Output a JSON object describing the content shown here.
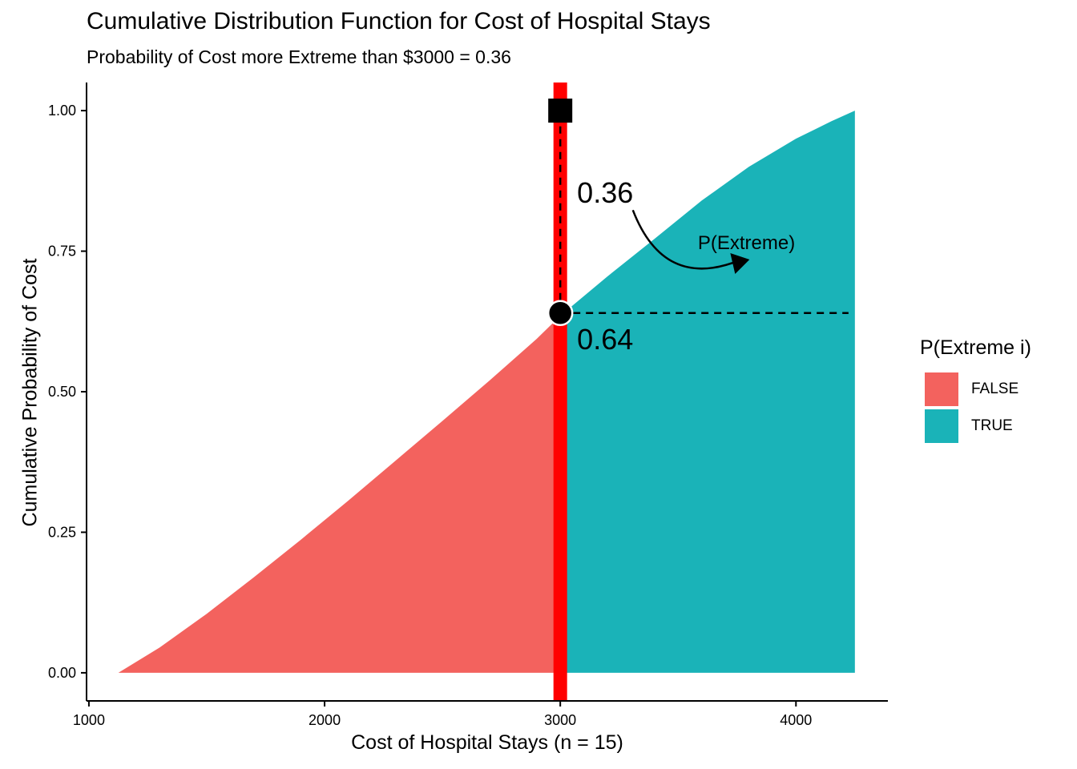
{
  "chart_data": {
    "type": "area",
    "title": "Cumulative Distribution Function for Cost of Hospital Stays",
    "subtitle": "Probability of Cost more Extreme than $3000 = 0.36",
    "xlabel": "Cost of Hospital Stays (n = 15)",
    "ylabel": "Cumulative Probability of Cost",
    "xlim": [
      990,
      4390
    ],
    "ylim": [
      -0.05,
      1.05
    ],
    "x_ticks": [
      1000,
      2000,
      3000,
      4000
    ],
    "y_ticks": [
      0,
      0.25,
      0.5,
      0.75,
      1
    ],
    "y_tick_labels": [
      "0.00",
      "0.25",
      "0.50",
      "0.75",
      "1.00"
    ],
    "grid": false,
    "legend": {
      "title": "P(Extreme i)",
      "placement": "right",
      "entries": [
        {
          "label": "FALSE",
          "color": "#F3625E"
        },
        {
          "label": "TRUE",
          "color": "#1AB3B8"
        }
      ]
    },
    "series": [
      {
        "name": "FALSE",
        "color": "#F3625E",
        "x": [
          1125,
          1300,
          1500,
          1700,
          1900,
          2100,
          2300,
          2500,
          2700,
          2900,
          3000
        ],
        "y": [
          0.0,
          0.045,
          0.105,
          0.17,
          0.237,
          0.306,
          0.377,
          0.448,
          0.52,
          0.594,
          0.635
        ]
      },
      {
        "name": "TRUE",
        "color": "#1AB3B8",
        "x": [
          3000,
          3200,
          3400,
          3600,
          3800,
          4000,
          4150,
          4250
        ],
        "y": [
          0.635,
          0.705,
          0.772,
          0.84,
          0.9,
          0.95,
          0.981,
          1.0
        ]
      }
    ],
    "threshold": {
      "x": 3000,
      "y": 0.64,
      "line_color": "#FF0000"
    },
    "annotations": {
      "upper_value": "0.36",
      "lower_value": "0.64",
      "arrow_label": "P(Extreme)"
    }
  }
}
